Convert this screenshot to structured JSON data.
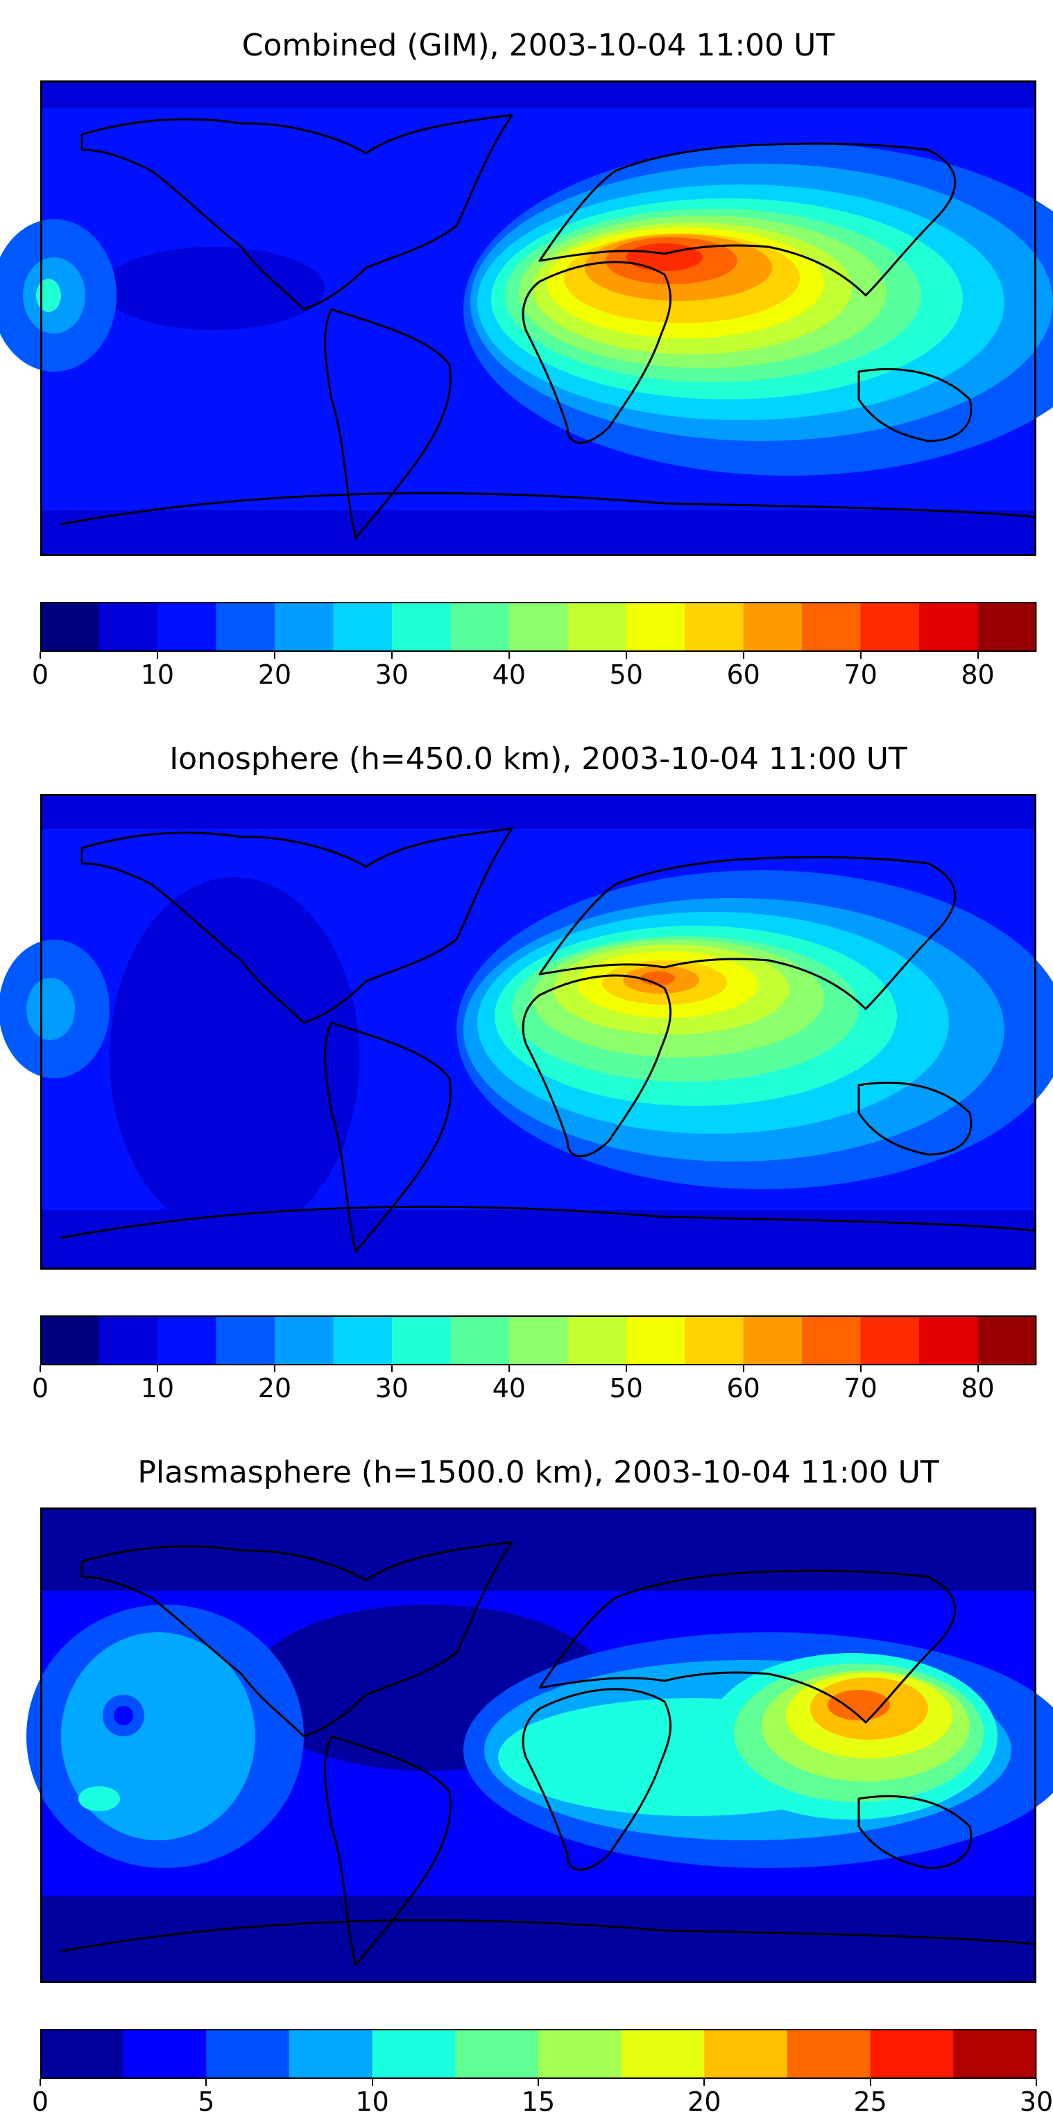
{
  "panels": [
    {
      "title": "Combined (GIM), 2003-10-04 11:00 UT",
      "colorbar": {
        "levels": [
          0,
          5,
          10,
          15,
          20,
          25,
          30,
          35,
          40,
          45,
          50,
          55,
          60,
          65,
          70,
          75,
          80,
          85
        ],
        "tick_labels": [
          "0",
          "10",
          "20",
          "30",
          "40",
          "50",
          "60",
          "70",
          "80"
        ],
        "tick_values": [
          0,
          10,
          20,
          30,
          40,
          50,
          60,
          70,
          80
        ],
        "colors": [
          "#00007f",
          "#0000d8",
          "#0011ff",
          "#0058ff",
          "#009cff",
          "#00d4ff",
          "#21ffd5",
          "#58ff9d",
          "#8cff6a",
          "#c2ff33",
          "#f2ff00",
          "#ffd200",
          "#ff9b00",
          "#ff6200",
          "#ff2a00",
          "#e30000",
          "#980000"
        ]
      }
    },
    {
      "title": "Ionosphere  (h=450.0 km), 2003-10-04 11:00 UT",
      "colorbar": {
        "levels": [
          0,
          5,
          10,
          15,
          20,
          25,
          30,
          35,
          40,
          45,
          50,
          55,
          60,
          65,
          70,
          75,
          80,
          85
        ],
        "tick_labels": [
          "0",
          "10",
          "20",
          "30",
          "40",
          "50",
          "60",
          "70",
          "80"
        ],
        "tick_values": [
          0,
          10,
          20,
          30,
          40,
          50,
          60,
          70,
          80
        ],
        "colors": [
          "#00007f",
          "#0000d8",
          "#0011ff",
          "#0058ff",
          "#009cff",
          "#00d4ff",
          "#21ffd5",
          "#58ff9d",
          "#8cff6a",
          "#c2ff33",
          "#f2ff00",
          "#ffd200",
          "#ff9b00",
          "#ff6200",
          "#ff2a00",
          "#e30000",
          "#980000"
        ]
      }
    },
    {
      "title": "Plasmasphere (h=1500.0 km), 2003-10-04 11:00 UT",
      "colorbar": {
        "levels": [
          0,
          2.5,
          5,
          7.5,
          10,
          12.5,
          15,
          17.5,
          20,
          22.5,
          25,
          27.5,
          30
        ],
        "tick_labels": [
          "0",
          "5",
          "10",
          "15",
          "20",
          "25",
          "30"
        ],
        "tick_values": [
          0,
          5,
          10,
          15,
          20,
          25,
          30
        ],
        "colors": [
          "#00009f",
          "#0000ff",
          "#0050ff",
          "#00a8ff",
          "#19ffdf",
          "#60ff96",
          "#a3ff53",
          "#e6ff10",
          "#ffbe00",
          "#ff6a00",
          "#ff1a00",
          "#b00000"
        ]
      }
    }
  ]
}
